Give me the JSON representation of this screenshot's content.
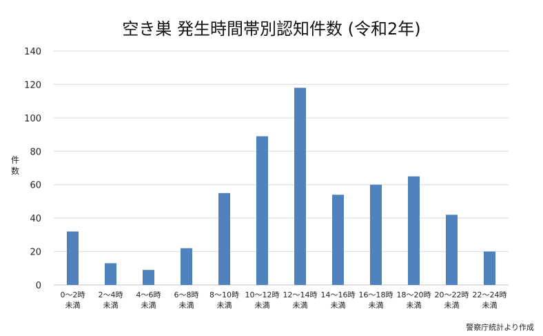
{
  "chart_data": {
    "type": "bar",
    "title": "空き巣 発生時間帯別認知件数 (令和2年)",
    "ylabel": "件数",
    "xlabel": "",
    "ylim": [
      0,
      140
    ],
    "yticks": [
      0,
      20,
      40,
      60,
      80,
      100,
      120,
      140
    ],
    "grid": true,
    "legend": "none",
    "categories": [
      [
        "0〜2時",
        "未満"
      ],
      [
        "2〜4時",
        "未満"
      ],
      [
        "4〜6時",
        "未満"
      ],
      [
        "6〜8時",
        "未満"
      ],
      [
        "8〜10時",
        "未満"
      ],
      [
        "10〜12時",
        "未満"
      ],
      [
        "12〜14時",
        "未満"
      ],
      [
        "14〜16時",
        "未満"
      ],
      [
        "16〜18時",
        "未満"
      ],
      [
        "18〜20時",
        "未満"
      ],
      [
        "20〜22時",
        "未満"
      ],
      [
        "22〜24時",
        "未満"
      ]
    ],
    "values": [
      32,
      13,
      9,
      22,
      55,
      89,
      118,
      54,
      60,
      65,
      42,
      20
    ],
    "bar_color": "#4f81bd",
    "source": "警察庁統計より作成"
  }
}
